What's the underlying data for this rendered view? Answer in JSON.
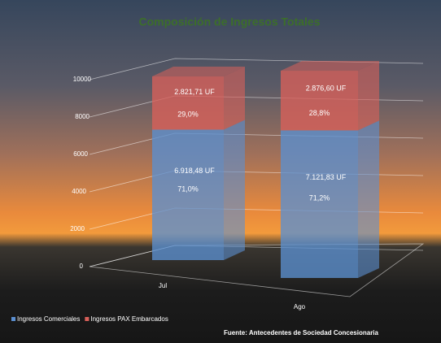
{
  "chart_data": {
    "type": "bar3d-stacked",
    "title": "Composición de Ingresos Totales",
    "categories": [
      "Jul",
      "Ago"
    ],
    "series": [
      {
        "name": "Ingresos Comerciales",
        "color": "#5b8fd0",
        "values": [
          6918.48,
          7121.83
        ],
        "value_labels": [
          "6.918,48 UF",
          "7.121,83 UF"
        ],
        "share_labels": [
          "71,0%",
          "71,2%"
        ]
      },
      {
        "name": "Ingresos PAX Embarcados",
        "color": "#d9605a",
        "values": [
          2821.71,
          2876.6
        ],
        "value_labels": [
          "2.821,71 UF",
          "2.876,60 UF"
        ],
        "share_labels": [
          "29,0%",
          "28,8%"
        ]
      }
    ],
    "ylim": [
      0,
      10000
    ],
    "yticks": [
      0,
      2000,
      4000,
      6000,
      8000,
      10000
    ],
    "grid": true,
    "legend": "bottom-left",
    "source": "Fuente: Antecedentes de Sociedad Concesionaria"
  }
}
